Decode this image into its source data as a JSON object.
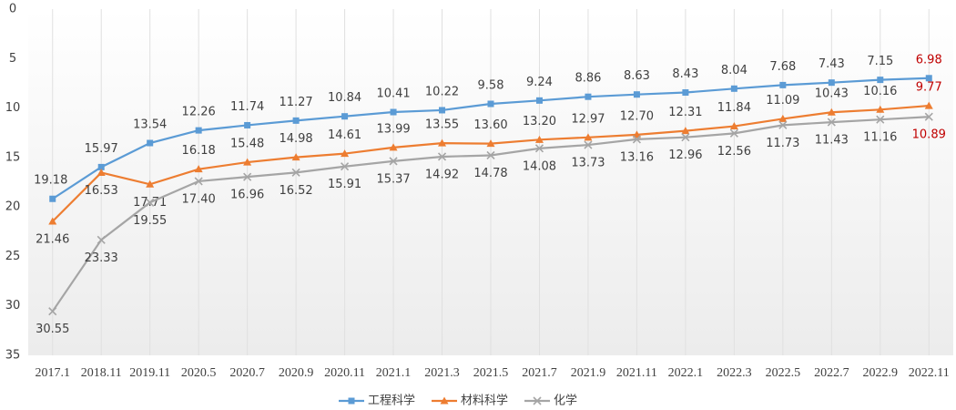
{
  "chart_data": {
    "type": "line",
    "categories": [
      "2017.1",
      "2018.11",
      "2019.11",
      "2020.5",
      "2020.7",
      "2020.9",
      "2020.11",
      "2021.1",
      "2021.3",
      "2021.5",
      "2021.7",
      "2021.9",
      "2021.11",
      "2022.1",
      "2022.3",
      "2022.5",
      "2022.7",
      "2022.9",
      "2022.11"
    ],
    "series": [
      {
        "name": "工程科学",
        "color": "#5b9bd5",
        "marker": "square",
        "label_position": "above",
        "values": [
          19.18,
          15.97,
          13.54,
          12.26,
          11.74,
          11.27,
          10.84,
          10.41,
          10.22,
          9.58,
          9.24,
          8.86,
          8.63,
          8.43,
          8.04,
          7.68,
          7.43,
          7.15,
          6.98
        ],
        "value_labels": [
          "19.18",
          "15.97",
          "13.54",
          "12.26",
          "11.74",
          "11.27",
          "10.84",
          "10.41",
          "10.22",
          "9.58",
          "9.24",
          "8.86",
          "8.63",
          "8.43",
          "8.04",
          "7.68",
          "7.43",
          "7.15",
          "6.98"
        ]
      },
      {
        "name": "材料科学",
        "color": "#ed7d31",
        "marker": "triangle",
        "label_position": "above",
        "values": [
          21.46,
          16.53,
          17.71,
          16.18,
          15.48,
          14.98,
          14.61,
          13.99,
          13.55,
          13.6,
          13.2,
          12.97,
          12.7,
          12.31,
          11.84,
          11.09,
          10.43,
          10.16,
          9.77
        ],
        "value_labels": [
          "21.46",
          "16.53",
          "17.71",
          "16.18",
          "15.48",
          "14.98",
          "14.61",
          "13.99",
          "13.55",
          "13.60",
          "13.20",
          "12.97",
          "12.70",
          "12.31",
          "11.84",
          "11.09",
          "10.43",
          "10.16",
          "9.77"
        ]
      },
      {
        "name": "化学",
        "color": "#a5a5a5",
        "marker": "x",
        "label_position": "below",
        "values": [
          30.55,
          23.33,
          19.55,
          17.4,
          16.96,
          16.52,
          15.91,
          15.37,
          14.92,
          14.78,
          14.08,
          13.73,
          13.16,
          12.96,
          12.56,
          11.73,
          11.43,
          11.16,
          10.89
        ],
        "value_labels": [
          "30.55",
          "23.33",
          "19.55",
          "17.40",
          "16.96",
          "16.52",
          "15.91",
          "15.37",
          "14.92",
          "14.78",
          "14.08",
          "13.73",
          "13.16",
          "12.96",
          "12.56",
          "11.73",
          "11.43",
          "11.16",
          "10.89"
        ]
      }
    ],
    "ylim": [
      0,
      35
    ],
    "yticks": [
      0,
      5,
      10,
      15,
      20,
      25,
      30,
      35
    ],
    "y_inverted": true,
    "grid": true,
    "legend": "bottom",
    "last_label_color": "#c00000"
  }
}
